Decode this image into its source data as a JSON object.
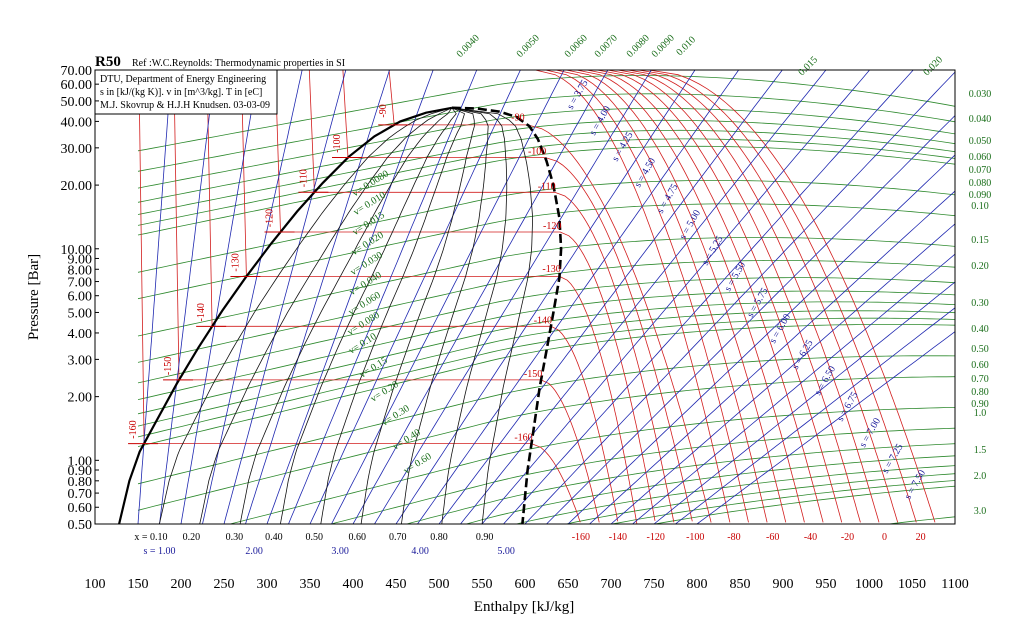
{
  "chart_data": {
    "type": "line",
    "title": "R50",
    "subtitle": "Ref :W.C.Reynolds: Thermodynamic properties in SI",
    "info_lines": [
      "DTU, Department of Energy Engineering",
      "s in [kJ/(kg K)]. v in [m^3/kg]. T in [eC]",
      "M.J. Skovrup & H.J.H Knudsen. 03-03-09"
    ],
    "xlabel": "Enthalpy [kJ/kg]",
    "ylabel": "Pressure [Bar]",
    "x_range": [
      100,
      1100
    ],
    "y_range": [
      0.5,
      70
    ],
    "y_scale": "log",
    "x_ticks": [
      "100",
      "150",
      "200",
      "250",
      "300",
      "350",
      "400",
      "450",
      "500",
      "550",
      "600",
      "650",
      "700",
      "750",
      "800",
      "850",
      "900",
      "950",
      "1000",
      "1050",
      "1100"
    ],
    "y_ticks": [
      {
        "value": 70,
        "label": "70.00"
      },
      {
        "value": 60,
        "label": "60.00"
      },
      {
        "value": 50,
        "label": "50.00"
      },
      {
        "value": 40,
        "label": "40.00"
      },
      {
        "value": 30,
        "label": "30.00"
      },
      {
        "value": 20,
        "label": "20.00"
      },
      {
        "value": 10,
        "label": "10.00"
      },
      {
        "value": 9,
        "label": "9.00"
      },
      {
        "value": 8,
        "label": "8.00"
      },
      {
        "value": 7,
        "label": "7.00"
      },
      {
        "value": 6,
        "label": "6.00"
      },
      {
        "value": 5,
        "label": "5.00"
      },
      {
        "value": 4,
        "label": "4.00"
      },
      {
        "value": 3,
        "label": "3.00"
      },
      {
        "value": 2,
        "label": "2.00"
      },
      {
        "value": 1,
        "label": "1.00"
      },
      {
        "value": 0.9,
        "label": "0.90"
      },
      {
        "value": 0.8,
        "label": "0.80"
      },
      {
        "value": 0.7,
        "label": "0.70"
      },
      {
        "value": 0.6,
        "label": "0.60"
      },
      {
        "value": 0.5,
        "label": "0.50"
      }
    ],
    "quality_labels": [
      {
        "x": 165,
        "label": "x = 0.10"
      },
      {
        "x": 212,
        "label": "0.20"
      },
      {
        "x": 262,
        "label": "0.30"
      },
      {
        "x": 308,
        "label": "0.40"
      },
      {
        "x": 355,
        "label": "0.50"
      },
      {
        "x": 405,
        "label": "0.60"
      },
      {
        "x": 452,
        "label": "0.70"
      },
      {
        "x": 500,
        "label": "0.80"
      },
      {
        "x": 553,
        "label": "0.90"
      }
    ],
    "entropy_bottom_labels": [
      {
        "x": 175,
        "label": "s = 1.00"
      },
      {
        "x": 285,
        "label": "2.00"
      },
      {
        "x": 385,
        "label": "3.00"
      },
      {
        "x": 478,
        "label": "4.00"
      },
      {
        "x": 578,
        "label": "5.00"
      }
    ],
    "temperature_bottom_labels": [
      {
        "x": 665,
        "label": "-160"
      },
      {
        "x": 708,
        "label": "-140"
      },
      {
        "x": 752,
        "label": "-120"
      },
      {
        "x": 798,
        "label": "-100"
      },
      {
        "x": 843,
        "label": "-80"
      },
      {
        "x": 888,
        "label": "-60"
      },
      {
        "x": 932,
        "label": "-40"
      },
      {
        "x": 975,
        "label": "-20"
      },
      {
        "x": 1018,
        "label": "0"
      },
      {
        "x": 1060,
        "label": "20"
      }
    ],
    "saturation_temperature_labels": [
      {
        "T": "-160",
        "p": 1.2
      },
      {
        "T": "-150",
        "p": 2.4
      },
      {
        "T": "-140",
        "p": 4.3
      },
      {
        "T": "-130",
        "p": 7.4
      },
      {
        "T": "-120",
        "p": 12.0
      },
      {
        "T": "-110",
        "p": 18.5
      },
      {
        "T": "-100",
        "p": 27.0
      },
      {
        "T": "-90",
        "p": 38.5
      }
    ],
    "vapour_temperature_labels": [
      {
        "T": "-90",
        "p": 39
      },
      {
        "T": "-100",
        "p": 27
      },
      {
        "T": "-110",
        "p": 18.5
      },
      {
        "T": "-120",
        "p": 12
      },
      {
        "T": "-130",
        "p": 7.5
      },
      {
        "T": "-140",
        "p": 4.3
      },
      {
        "T": "-150",
        "p": 2.4
      },
      {
        "T": "-160",
        "p": 1.2
      }
    ],
    "volume_labels_top": [
      "0.0040",
      "0.0050",
      "0.0060",
      "0.0070",
      "0.0080",
      "0.0090",
      "0.010",
      "0.015",
      "0.020"
    ],
    "volume_labels_right": [
      "0.030",
      "0.040",
      "0.050",
      "0.060",
      "0.070",
      "0.080",
      "0.090",
      "0.10",
      "0.15",
      "0.20",
      "0.30",
      "0.40",
      "0.50",
      "0.60",
      "0.70",
      "0.80",
      "0.90",
      "1.0",
      "1.5",
      "2.0",
      "3.0"
    ],
    "volume_labels_inside": [
      "v= 0.0080",
      "v= 0.010",
      "v= 0.015",
      "v= 0.020",
      "v= 0.030",
      "v= 0.040",
      "v= 0.060",
      "v= 0.080",
      "v= 0.10",
      "v= 0.15",
      "v= 0.20",
      "v= 0.30",
      "v= 0.40",
      "v= 0.60"
    ],
    "entropy_labels_inside": [
      "s = 3.75",
      "s = 4.00",
      "s = 4.25",
      "s = 4.50",
      "s = 4.75",
      "s = 5.00",
      "s = 5.25",
      "s = 5.50",
      "s = 5.75",
      "s = 6.00",
      "s = 6.25",
      "s = 6.50",
      "s = 6.75",
      "s = 7.00",
      "s = 7.25",
      "s = 7.50"
    ],
    "saturation_curve": {
      "liquid": [
        [
          128,
          0.5
        ],
        [
          140,
          0.8
        ],
        [
          152,
          1.1
        ],
        [
          170,
          1.5
        ],
        [
          195,
          2.3
        ],
        [
          220,
          3.4
        ],
        [
          248,
          5.1
        ],
        [
          275,
          7.3
        ],
        [
          305,
          10.6
        ],
        [
          335,
          15
        ],
        [
          365,
          20.5
        ],
        [
          395,
          27.2
        ],
        [
          425,
          34
        ],
        [
          455,
          40
        ],
        [
          485,
          44
        ],
        [
          515,
          46.4
        ]
      ],
      "vapour": [
        [
          515,
          46.4
        ],
        [
          545,
          46
        ],
        [
          570,
          44.5
        ],
        [
          590,
          42
        ],
        [
          605,
          38
        ],
        [
          615,
          33
        ],
        [
          625,
          26
        ],
        [
          633,
          20
        ],
        [
          640,
          14
        ],
        [
          642,
          10
        ],
        [
          640,
          7.3
        ],
        [
          633,
          5
        ],
        [
          625,
          3.3
        ],
        [
          617,
          2.2
        ],
        [
          610,
          1.4
        ],
        [
          603,
          0.9
        ],
        [
          597,
          0.5
        ]
      ]
    }
  }
}
